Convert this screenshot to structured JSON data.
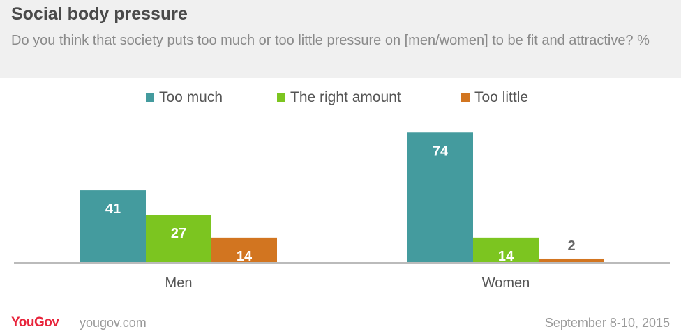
{
  "header": {
    "title": "Social body pressure",
    "subtitle": "Do you think that society puts too much or too little pressure on [men/women] to be fit and attractive? %"
  },
  "chart_data": {
    "type": "bar",
    "categories": [
      "Men",
      "Women"
    ],
    "series": [
      {
        "name": "Too much",
        "color": "#449b9e",
        "values": [
          41,
          74
        ]
      },
      {
        "name": "The right amount",
        "color": "#7cc520",
        "values": [
          27,
          14
        ]
      },
      {
        "name": "Too little",
        "color": "#d27520",
        "values": [
          14,
          2
        ]
      }
    ],
    "ylim": [
      0,
      80
    ],
    "grid": false,
    "legend": "top-center"
  },
  "footer": {
    "brand": "YouGov",
    "site": "yougov.com",
    "date": "September 8-10, 2015"
  }
}
